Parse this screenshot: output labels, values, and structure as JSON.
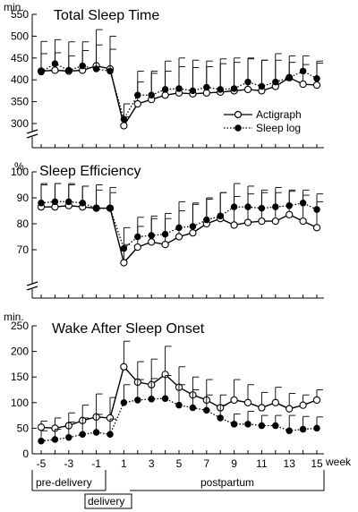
{
  "chart_data": [
    {
      "type": "line",
      "title": "Total Sleep Time",
      "ylabel": "min.",
      "ylim": [
        300,
        550
      ],
      "yticks": [
        300,
        350,
        400,
        450,
        500,
        550
      ],
      "axis_break": true,
      "x": [
        -5,
        -4,
        -3,
        -2,
        -1,
        0,
        1,
        2,
        3,
        4,
        5,
        6,
        7,
        8,
        9,
        10,
        11,
        12,
        13,
        14,
        15
      ],
      "legend": {
        "placement": "right",
        "entries": [
          "Actigraph",
          "Sleep log"
        ]
      },
      "series": [
        {
          "name": "Actigraph",
          "marker": "open-circle",
          "line": "solid",
          "values": [
            420,
            422,
            420,
            422,
            432,
            425,
            295,
            345,
            355,
            365,
            370,
            368,
            370,
            372,
            375,
            378,
            375,
            385,
            405,
            390,
            388
          ],
          "errors": [
            40,
            40,
            35,
            45,
            48,
            45,
            20,
            50,
            60,
            55,
            60,
            60,
            60,
            65,
            65,
            70,
            70,
            60,
            35,
            45,
            55
          ]
        },
        {
          "name": "Sleep log",
          "marker": "filled-circle",
          "line": "dotted",
          "values": [
            418,
            437,
            422,
            432,
            425,
            420,
            310,
            365,
            365,
            378,
            380,
            375,
            383,
            378,
            380,
            395,
            385,
            395,
            405,
            420,
            403
          ],
          "errors": [
            70,
            55,
            65,
            55,
            90,
            80,
            35,
            55,
            55,
            65,
            70,
            70,
            60,
            70,
            70,
            55,
            60,
            65,
            50,
            35,
            35
          ]
        }
      ]
    },
    {
      "type": "line",
      "title": "Sleep Efficiency",
      "ylabel": "%",
      "ylim": [
        60,
        100
      ],
      "yticks": [
        70,
        80,
        90,
        100
      ],
      "axis_break": true,
      "x": [
        -5,
        -4,
        -3,
        -2,
        -1,
        0,
        1,
        2,
        3,
        4,
        5,
        6,
        7,
        8,
        9,
        10,
        11,
        12,
        13,
        14,
        15
      ],
      "series": [
        {
          "name": "Actigraph",
          "marker": "open-circle",
          "line": "solid",
          "values": [
            86.5,
            86.5,
            87,
            86.5,
            86,
            86,
            65,
            71,
            73,
            72,
            75,
            76.5,
            80,
            82,
            79.5,
            80.5,
            81,
            81,
            83.5,
            81,
            78.5
          ],
          "errors": [
            9,
            9,
            8,
            8,
            9,
            8,
            7,
            8,
            9,
            10,
            10,
            11,
            10,
            10,
            11,
            11,
            11,
            11,
            9,
            10,
            10
          ]
        },
        {
          "name": "Sleep log",
          "marker": "filled-circle",
          "line": "dotted",
          "values": [
            88,
            88.5,
            88.5,
            88,
            86,
            86,
            70.5,
            75,
            75.5,
            76,
            78.5,
            79,
            81.5,
            83,
            86.5,
            86.5,
            86,
            86.5,
            87,
            88,
            85.5
          ],
          "errors": [
            7,
            7,
            7,
            6.5,
            7,
            6,
            8,
            7.5,
            7.5,
            8,
            10,
            9,
            8,
            9,
            9,
            8,
            7,
            7.5,
            6,
            5,
            6
          ]
        }
      ]
    },
    {
      "type": "line",
      "title": "Wake After Sleep Onset",
      "ylabel": "min.",
      "xlabel": "week",
      "ylim": [
        0,
        250
      ],
      "yticks": [
        0,
        50,
        100,
        150,
        200,
        250
      ],
      "x": [
        -5,
        -4,
        -3,
        -2,
        -1,
        0,
        1,
        2,
        3,
        4,
        5,
        6,
        7,
        8,
        9,
        10,
        11,
        12,
        13,
        14,
        15
      ],
      "xticklabels": [
        "-5",
        "-3",
        "-1",
        "1",
        "3",
        "5",
        "7",
        "9",
        "11",
        "13",
        "15"
      ],
      "series": [
        {
          "name": "Actigraph",
          "marker": "open-circle",
          "line": "solid",
          "values": [
            52,
            50,
            55,
            65,
            72,
            70,
            170,
            140,
            135,
            155,
            130,
            115,
            105,
            90,
            105,
            100,
            90,
            100,
            88,
            95,
            105
          ],
          "errors": [
            12,
            20,
            25,
            30,
            45,
            40,
            50,
            40,
            50,
            55,
            40,
            35,
            40,
            25,
            40,
            35,
            30,
            30,
            30,
            20,
            20
          ]
        },
        {
          "name": "Sleep log",
          "marker": "filled-circle",
          "line": "dotted",
          "values": [
            25,
            28,
            32,
            38,
            42,
            38,
            100,
            105,
            107,
            108,
            95,
            90,
            85,
            70,
            58,
            58,
            55,
            55,
            45,
            48,
            50
          ],
          "errors": [
            20,
            20,
            30,
            32,
            35,
            30,
            35,
            40,
            40,
            45,
            40,
            35,
            30,
            25,
            20,
            25,
            20,
            20,
            30,
            25,
            22
          ]
        }
      ]
    }
  ],
  "labels": {
    "week": "week",
    "pre_delivery": "pre-delivery",
    "delivery": "delivery",
    "postpartum": "postpartum"
  },
  "legend": {
    "actigraph": "Actigraph",
    "sleep_log": "Sleep log"
  }
}
